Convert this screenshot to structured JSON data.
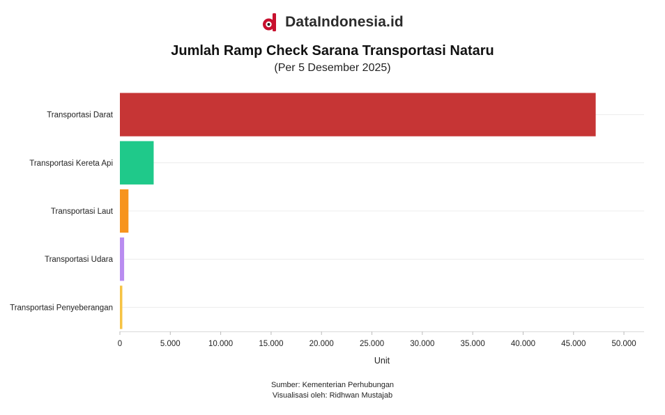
{
  "header": {
    "brand_name": "DataIndonesia.id",
    "brand_color": "#c8102e"
  },
  "chart_data": {
    "type": "bar",
    "orientation": "horizontal",
    "title": "Jumlah Ramp Check Sarana Transportasi Nataru",
    "subtitle": "(Per 5 Desember 2025)",
    "xlabel": "Unit",
    "ylabel": "",
    "xlim": [
      0,
      52000
    ],
    "x_ticks": [
      0,
      5000,
      10000,
      15000,
      20000,
      25000,
      30000,
      35000,
      40000,
      45000,
      50000
    ],
    "x_tick_labels": [
      "0",
      "5.000",
      "10.000",
      "15.000",
      "20.000",
      "25.000",
      "30.000",
      "35.000",
      "40.000",
      "45.000",
      "50.000"
    ],
    "grid": true,
    "legend": "none",
    "categories": [
      "Transportasi Darat",
      "Transportasi Kereta Api",
      "Transportasi Laut",
      "Transportasi Udara",
      "Transportasi Penyeberangan"
    ],
    "values": [
      47200,
      3350,
      850,
      420,
      240
    ],
    "colors": [
      "#c63535",
      "#1fc98a",
      "#f7941d",
      "#b98cf0",
      "#f6c343"
    ]
  },
  "footer": {
    "source": "Sumber: Kementerian Perhubungan",
    "visualized_by": "Visualisasi oleh: Ridhwan Mustajab"
  }
}
